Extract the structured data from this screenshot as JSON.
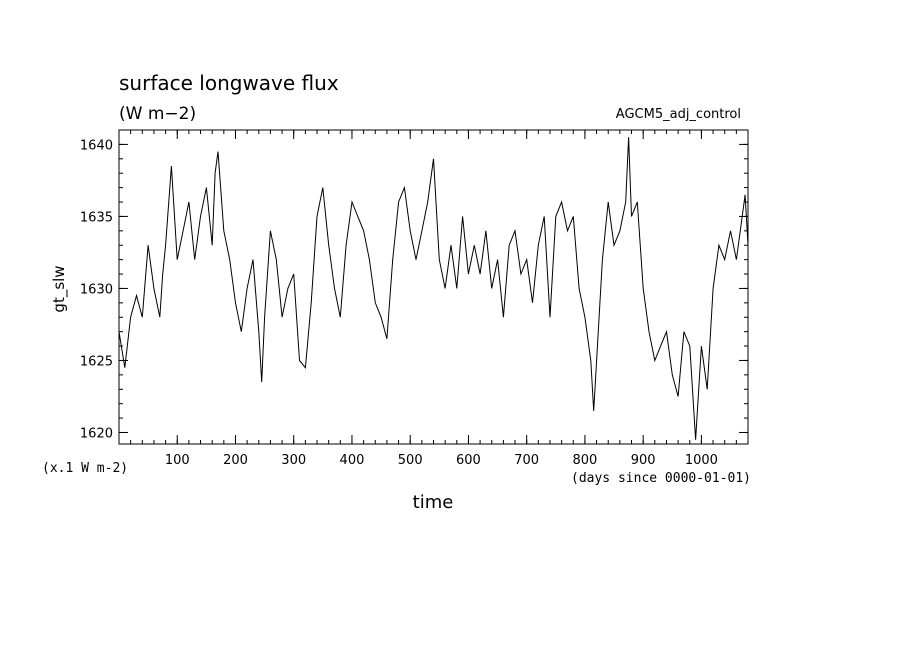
{
  "chart_data": {
    "type": "line",
    "title": "surface longwave flux",
    "subtitle": "(W m−2)",
    "run_label": "AGCM5_adj_control",
    "ylabel": "gt_slw",
    "yscale_note": "(x.1 W m-2)",
    "xlabel": "time",
    "xunits_note": "(days since 0000-01-01)",
    "xlim": [
      0,
      1080
    ],
    "ylim": [
      1619.2,
      1641.0
    ],
    "xticks": [
      100,
      200,
      300,
      400,
      500,
      600,
      700,
      800,
      900,
      1000
    ],
    "yticks": [
      1620,
      1625,
      1630,
      1635,
      1640
    ],
    "series": [
      {
        "x": [
          0,
          10,
          20,
          30,
          40,
          50,
          60,
          70,
          75,
          80,
          90,
          100,
          110,
          120,
          130,
          140,
          150,
          160,
          165,
          170,
          180,
          190,
          200,
          210,
          220,
          230,
          240,
          245,
          250,
          260,
          270,
          280,
          290,
          300,
          310,
          320,
          330,
          340,
          350,
          360,
          370,
          380,
          390,
          400,
          410,
          420,
          430,
          440,
          450,
          460,
          470,
          480,
          490,
          500,
          510,
          520,
          530,
          540,
          550,
          560,
          570,
          580,
          590,
          600,
          610,
          620,
          630,
          640,
          650,
          660,
          670,
          680,
          690,
          700,
          710,
          720,
          730,
          740,
          750,
          760,
          770,
          780,
          790,
          800,
          810,
          815,
          820,
          830,
          840,
          850,
          860,
          870,
          875,
          880,
          890,
          900,
          910,
          920,
          930,
          940,
          950,
          960,
          970,
          980,
          990,
          1000,
          1010,
          1020,
          1030,
          1040,
          1050,
          1060,
          1070,
          1075,
          1080
        ],
        "y": [
          1627,
          1624.5,
          1628,
          1629.5,
          1628,
          1633,
          1630,
          1628,
          1631,
          1633,
          1638.5,
          1632,
          1634,
          1636,
          1632,
          1635,
          1637,
          1633,
          1638,
          1639.5,
          1634,
          1632,
          1629,
          1627,
          1630,
          1632,
          1627,
          1623.5,
          1628,
          1634,
          1632,
          1628,
          1630,
          1631,
          1625,
          1624.5,
          1629,
          1635,
          1637,
          1633,
          1630,
          1628,
          1633,
          1636,
          1635,
          1634,
          1632,
          1629,
          1628,
          1626.5,
          1632,
          1636,
          1637,
          1634,
          1632,
          1634,
          1636,
          1639,
          1632,
          1630,
          1633,
          1630,
          1635,
          1631,
          1633,
          1631,
          1634,
          1630,
          1632,
          1628,
          1633,
          1634,
          1631,
          1632,
          1629,
          1633,
          1635,
          1628,
          1635,
          1636,
          1634,
          1635,
          1630,
          1628,
          1625,
          1621.5,
          1625,
          1632,
          1636,
          1633,
          1634,
          1636,
          1640.5,
          1635,
          1636,
          1630,
          1627,
          1625,
          1626,
          1627,
          1624,
          1622.5,
          1627,
          1626,
          1619.5,
          1626,
          1623,
          1630,
          1633,
          1632,
          1634,
          1632,
          1635,
          1636.5,
          1633
        ]
      }
    ]
  }
}
